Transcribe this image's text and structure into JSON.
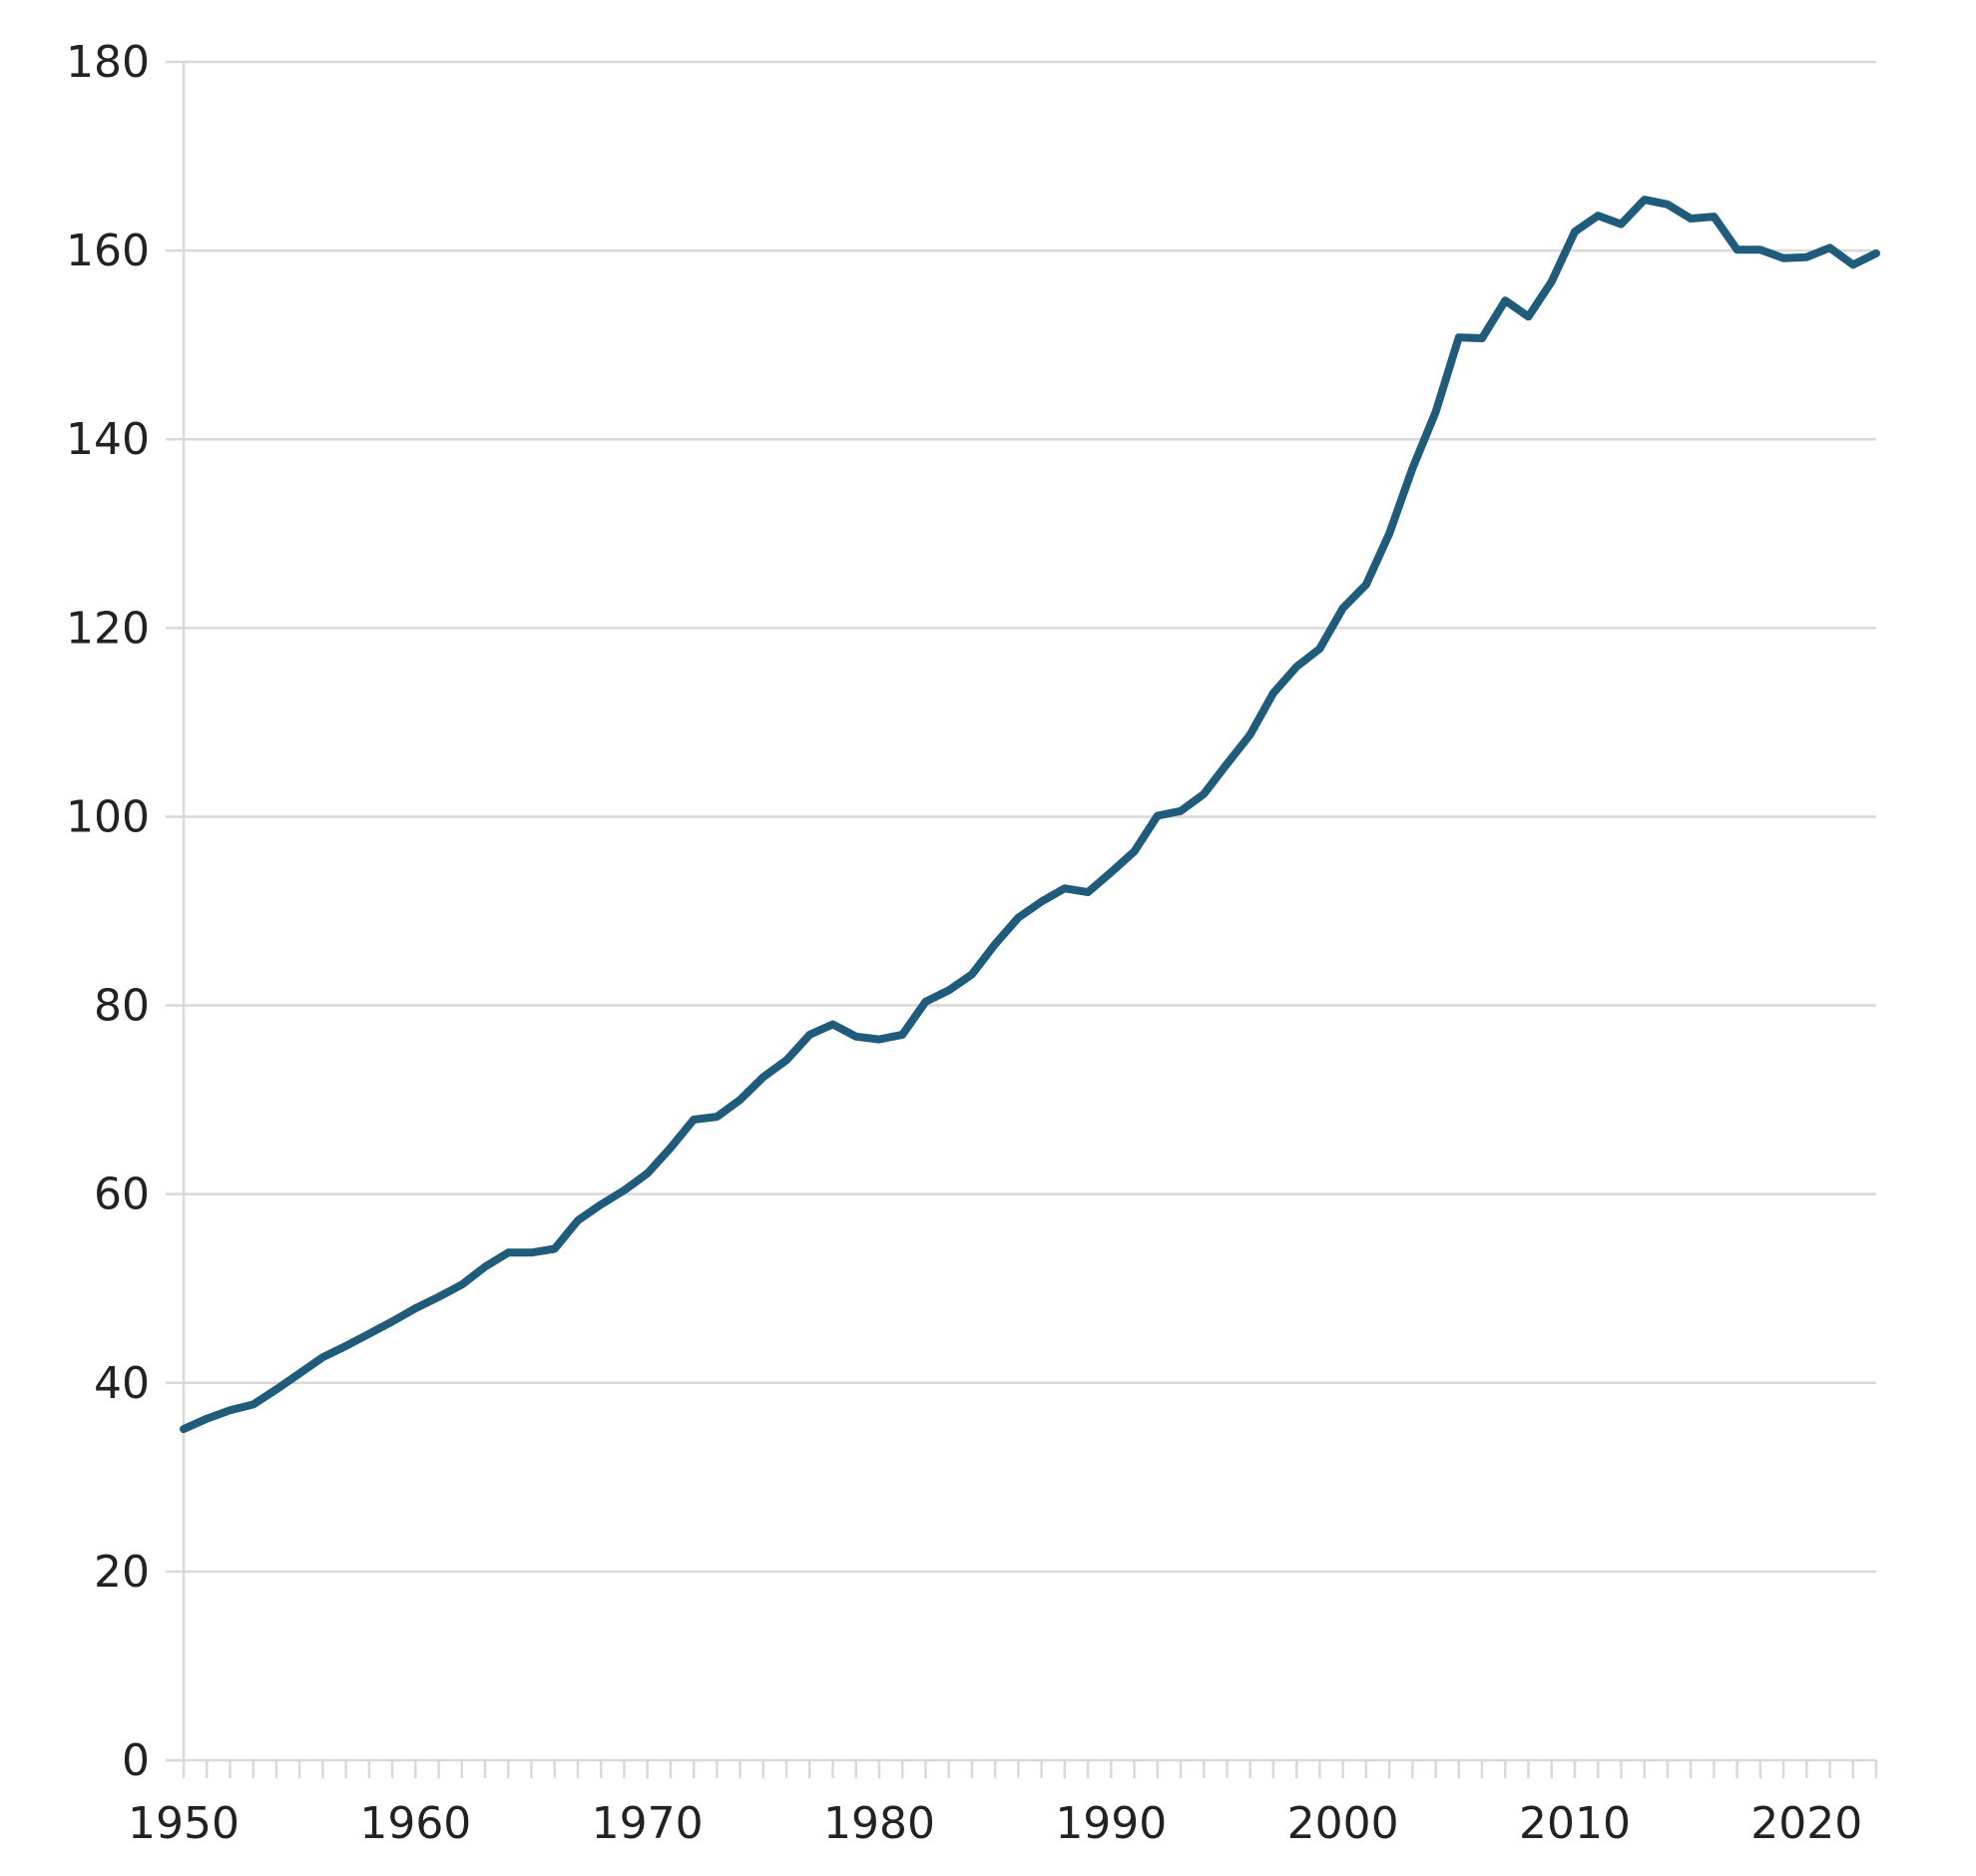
{
  "chart_data": {
    "type": "line",
    "title": "",
    "xlabel": "",
    "ylabel": "",
    "xlim": [
      1950,
      2023
    ],
    "ylim": [
      0,
      180
    ],
    "x_ticks": [
      1950,
      1960,
      1970,
      1980,
      1990,
      2000,
      2010,
      2020
    ],
    "x_tick_labels": [
      "1950",
      "1960",
      "1970",
      "1980",
      "1990",
      "2000",
      "2010",
      "2020"
    ],
    "y_ticks": [
      0,
      20,
      40,
      60,
      80,
      100,
      120,
      140,
      160,
      180
    ],
    "y_tick_labels": [
      "0",
      "20",
      "40",
      "60",
      "80",
      "100",
      "120",
      "140",
      "160",
      "180"
    ],
    "grid": true,
    "legend": "none",
    "series": [
      {
        "color": "#1f5b7a",
        "x": [
          1950,
          1951,
          1952,
          1953,
          1954,
          1955,
          1956,
          1957,
          1958,
          1959,
          1960,
          1961,
          1962,
          1963,
          1964,
          1965,
          1966,
          1967,
          1968,
          1969,
          1970,
          1971,
          1972,
          1973,
          1974,
          1975,
          1976,
          1977,
          1978,
          1979,
          1980,
          1981,
          1982,
          1983,
          1984,
          1985,
          1986,
          1987,
          1988,
          1989,
          1990,
          1991,
          1992,
          1993,
          1994,
          1995,
          1996,
          1997,
          1998,
          1999,
          2000,
          2001,
          2002,
          2003,
          2004,
          2005,
          2006,
          2007,
          2008,
          2009,
          2010,
          2011,
          2012,
          2013,
          2014,
          2015,
          2016,
          2017,
          2018,
          2019,
          2020,
          2021,
          2022,
          2023
        ],
        "values": [
          35.1,
          36.2,
          37.1,
          37.7,
          39.3,
          41.0,
          42.7,
          43.9,
          45.2,
          46.5,
          47.9,
          49.1,
          50.4,
          52.3,
          53.8,
          53.8,
          54.2,
          57.2,
          58.9,
          60.4,
          62.2,
          64.9,
          67.9,
          68.2,
          70.0,
          72.4,
          74.2,
          76.9,
          78.0,
          76.7,
          76.4,
          76.9,
          80.4,
          81.6,
          83.3,
          86.5,
          89.3,
          91.0,
          92.4,
          92.0,
          94.1,
          96.3,
          100.1,
          100.6,
          102.4,
          105.6,
          108.7,
          113.1,
          115.9,
          117.8,
          122.1,
          124.6,
          130.0,
          136.9,
          142.9,
          150.8,
          150.7,
          154.7,
          153.0,
          156.7,
          162.0,
          163.7,
          162.8,
          165.4,
          164.9,
          163.4,
          163.6,
          160.1,
          160.1,
          159.2,
          159.3,
          160.3,
          158.5,
          159.7
        ]
      }
    ]
  }
}
